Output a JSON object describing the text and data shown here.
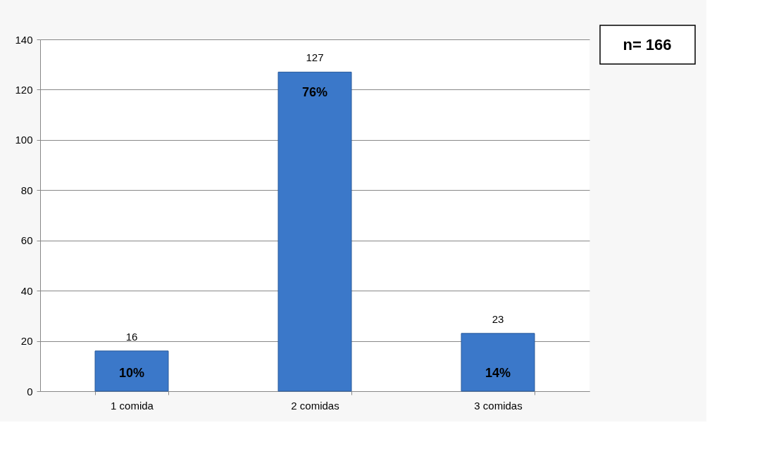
{
  "chart_data": {
    "type": "bar",
    "categories": [
      "1 comida",
      "2 comidas",
      "3 comidas"
    ],
    "values": [
      16,
      127,
      23
    ],
    "color": "#3b78c9",
    "ylim": [
      0,
      140
    ],
    "yticks": [
      0,
      20,
      40,
      60,
      80,
      100,
      120,
      140
    ],
    "grid": "y",
    "data_labels": true,
    "annotations": [
      "10%",
      "76%",
      "14%",
      "n= 166"
    ]
  }
}
